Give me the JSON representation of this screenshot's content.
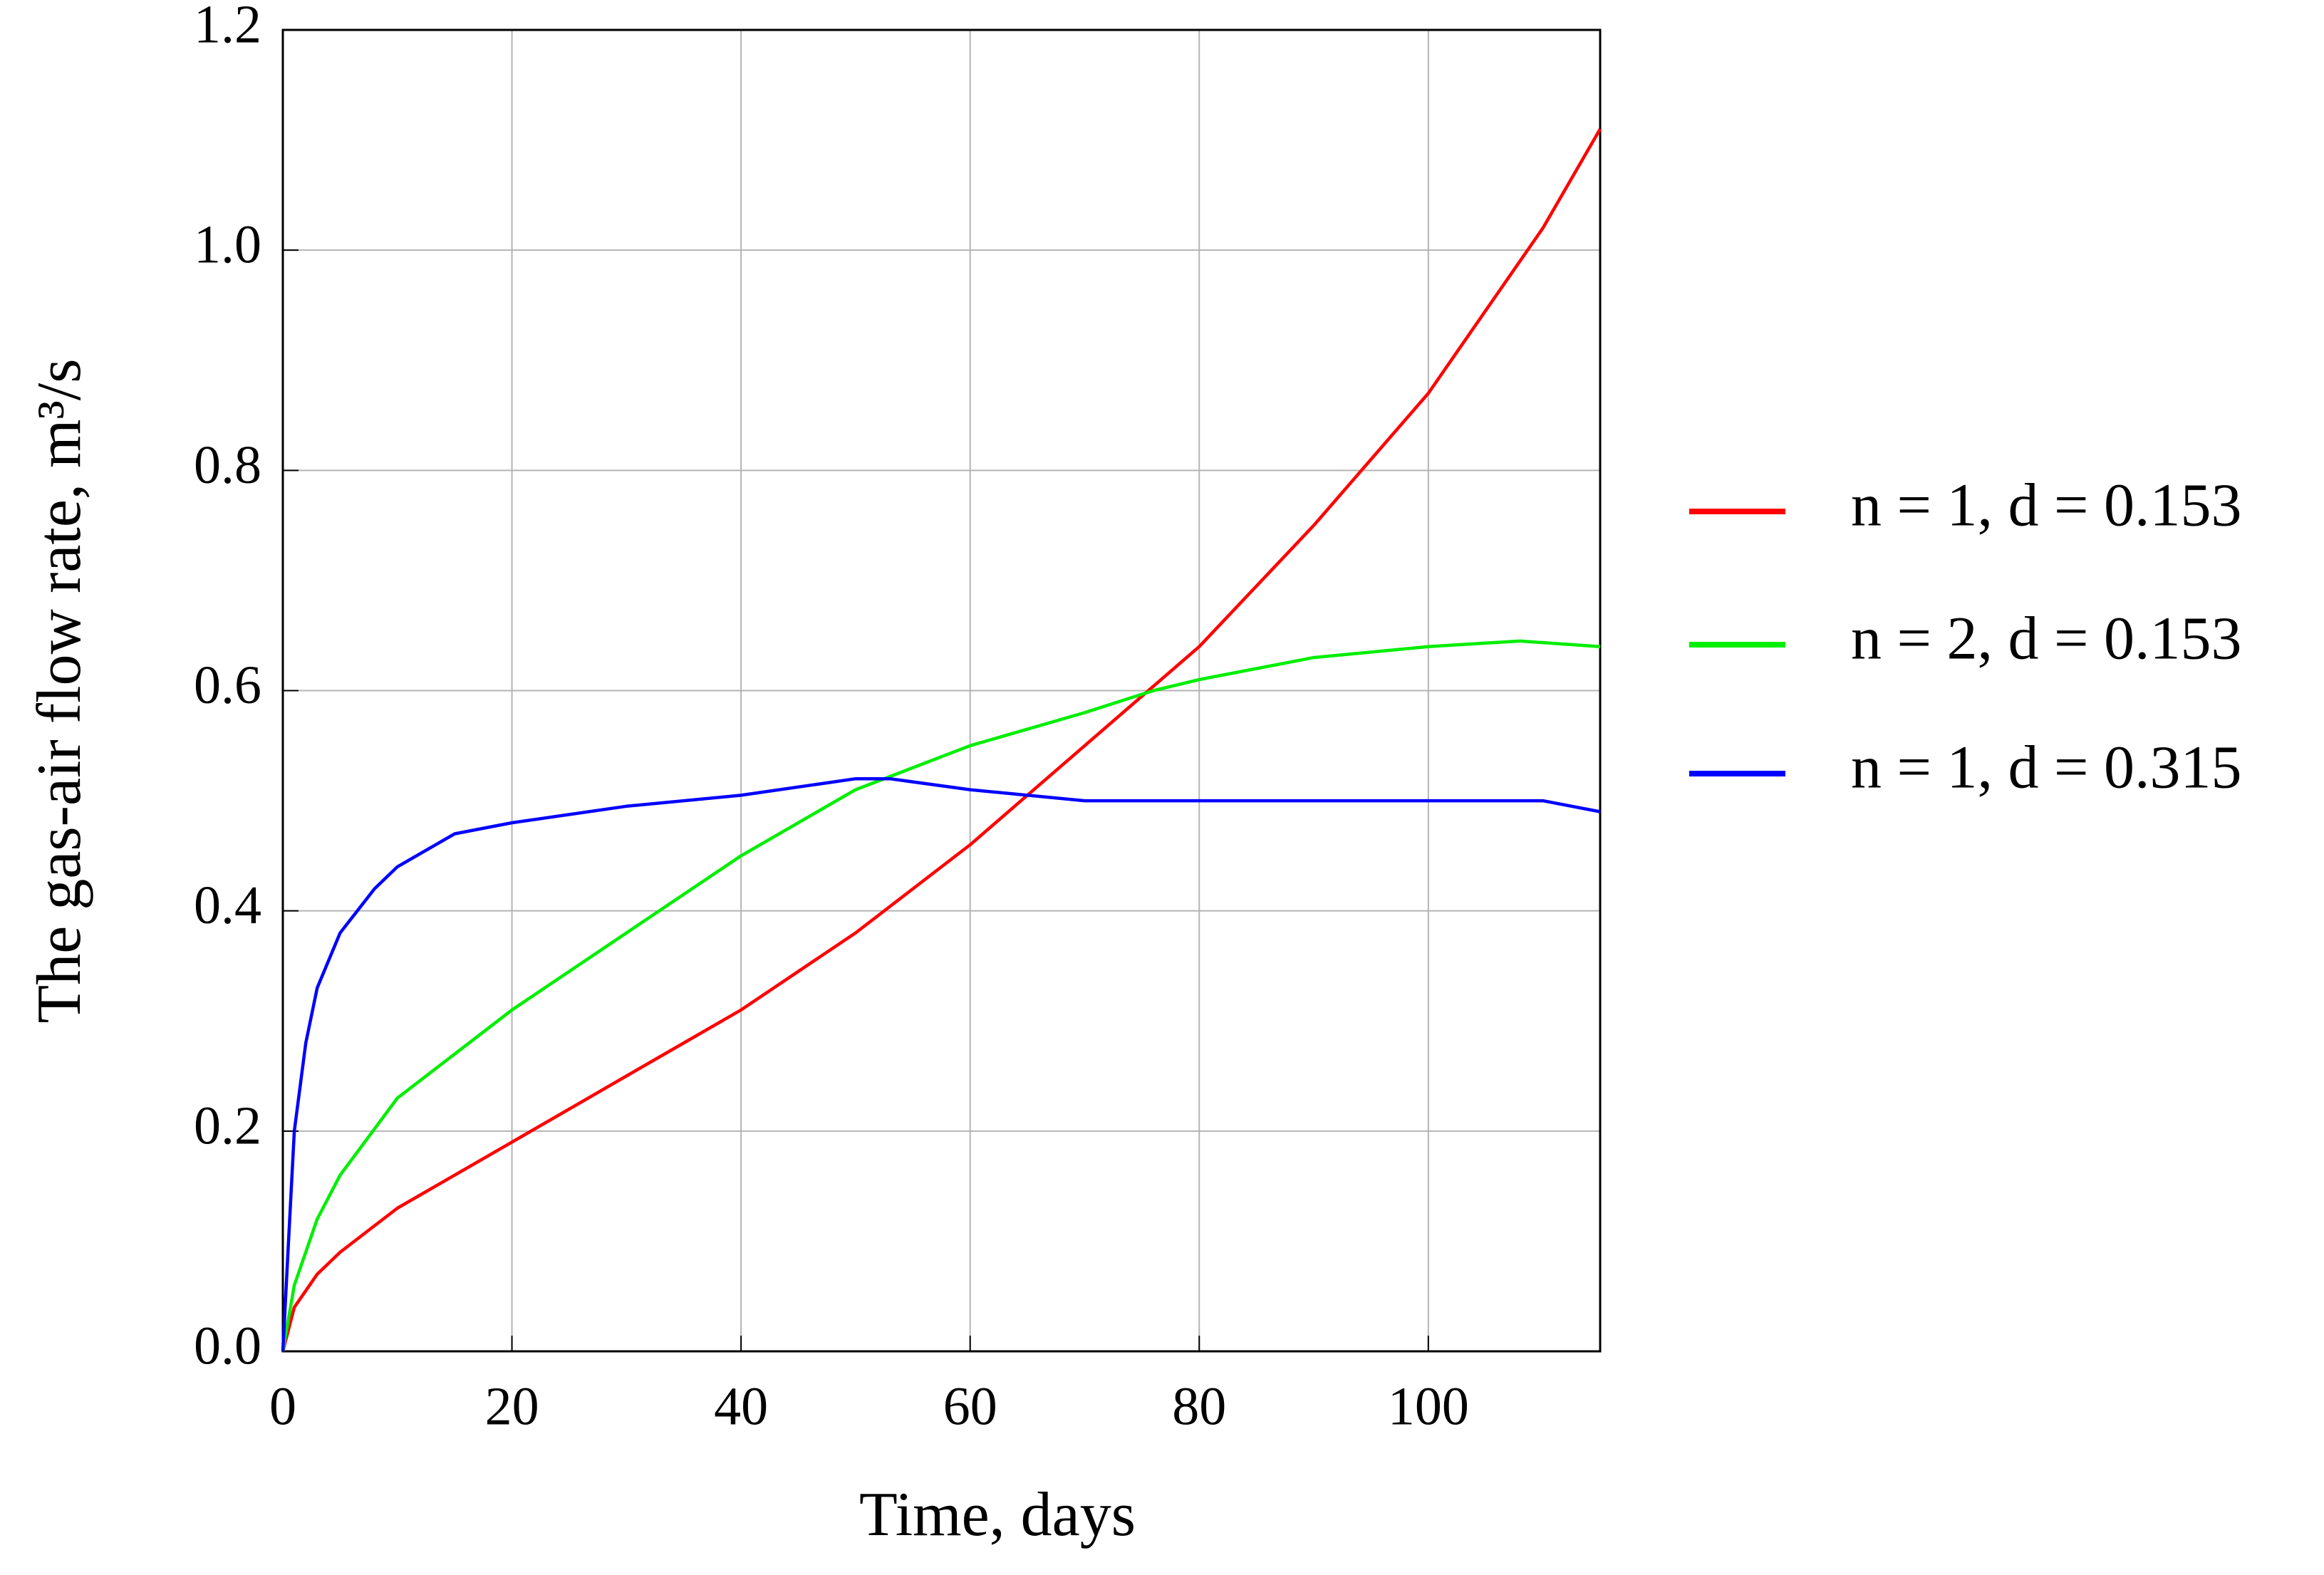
{
  "chart_data": {
    "type": "line",
    "x_label": "Time, days",
    "y_label": "The gas-air flow rate, m³/s",
    "xlim": [
      0,
      115
    ],
    "ylim": [
      0,
      1.2
    ],
    "xticks": [
      0,
      20,
      40,
      60,
      80,
      100
    ],
    "yticks": [
      {
        "value": 0,
        "label": "0.0"
      },
      0.2,
      0.4,
      0.6,
      0.8,
      {
        "value": 1,
        "label": "1.0"
      },
      1.2
    ],
    "grid": true,
    "legend": "right",
    "series": [
      {
        "name": "n = 1, d = 0.153",
        "color": "#ff0000",
        "x": [
          0,
          1,
          3,
          5,
          10,
          20,
          30,
          40,
          50,
          60,
          70,
          80,
          90,
          100,
          110,
          115
        ],
        "values": [
          0,
          0.04,
          0.07,
          0.09,
          0.13,
          0.19,
          0.25,
          0.31,
          0.38,
          0.46,
          0.55,
          0.64,
          0.75,
          0.87,
          1.02,
          1.11
        ]
      },
      {
        "name": "n = 2, d = 0.153",
        "color": "#00ee00",
        "x": [
          0,
          1,
          3,
          5,
          10,
          20,
          30,
          40,
          50,
          60,
          70,
          76,
          80,
          90,
          100,
          108,
          115
        ],
        "values": [
          0,
          0.06,
          0.12,
          0.16,
          0.23,
          0.31,
          0.38,
          0.45,
          0.51,
          0.55,
          0.58,
          0.6,
          0.61,
          0.63,
          0.64,
          0.645,
          0.64
        ]
      },
      {
        "name": "n = 1, d = 0.315",
        "color": "#0000ff",
        "x": [
          0,
          0.5,
          1,
          2,
          3,
          5,
          8,
          10,
          15,
          20,
          30,
          40,
          50,
          53,
          60,
          70,
          80,
          90,
          100,
          110,
          115
        ],
        "values": [
          0,
          0.1,
          0.2,
          0.28,
          0.33,
          0.38,
          0.42,
          0.44,
          0.47,
          0.48,
          0.495,
          0.505,
          0.52,
          0.52,
          0.51,
          0.5,
          0.5,
          0.5,
          0.5,
          0.5,
          0.49
        ]
      }
    ]
  }
}
